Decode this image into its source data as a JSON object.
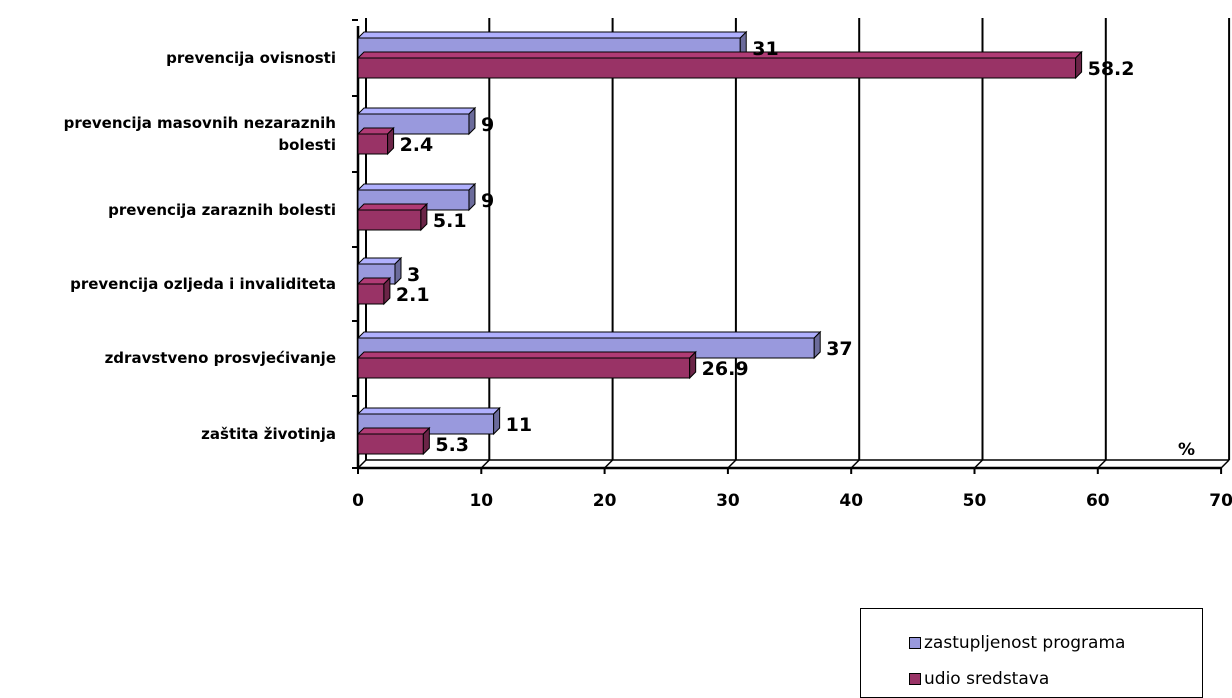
{
  "chart_data": {
    "type": "bar",
    "orientation": "horizontal",
    "categories": [
      "prevencija ovisnosti",
      "prevencija masovnih nezaraznih bolesti",
      "prevencija zaraznih bolesti",
      "prevencija ozljeda i invaliditeta",
      "zdravstveno prosvjećivanje",
      "zaštita životinja"
    ],
    "category_lines": [
      [
        "prevencija ovisnosti"
      ],
      [
        "prevencija masovnih nezaraznih",
        "bolesti"
      ],
      [
        "prevencija zaraznih bolesti"
      ],
      [
        "prevencija ozljeda i invaliditeta"
      ],
      [
        "zdravstveno prosvjećivanje"
      ],
      [
        "zaštita životinja"
      ]
    ],
    "series": [
      {
        "name": "zastupljenost programa",
        "color": "#9999dd",
        "values": [
          31,
          9,
          9,
          3,
          37,
          11
        ],
        "labels": [
          "31",
          "9",
          "9",
          "3",
          "37",
          "11"
        ]
      },
      {
        "name": "udio sredstava",
        "color": "#993366",
        "values": [
          58.2,
          2.4,
          5.1,
          2.1,
          26.9,
          5.3
        ],
        "labels": [
          "58.2",
          "2.4",
          "5.1",
          "2.1",
          "26.9",
          "5.3"
        ]
      }
    ],
    "xlim": [
      0,
      70
    ],
    "xticks": [
      "0",
      "10",
      "20",
      "30",
      "40",
      "50",
      "60",
      "70"
    ],
    "unit_label": "%",
    "grid": true,
    "three_d": true,
    "legend_position": "bottom-right"
  }
}
